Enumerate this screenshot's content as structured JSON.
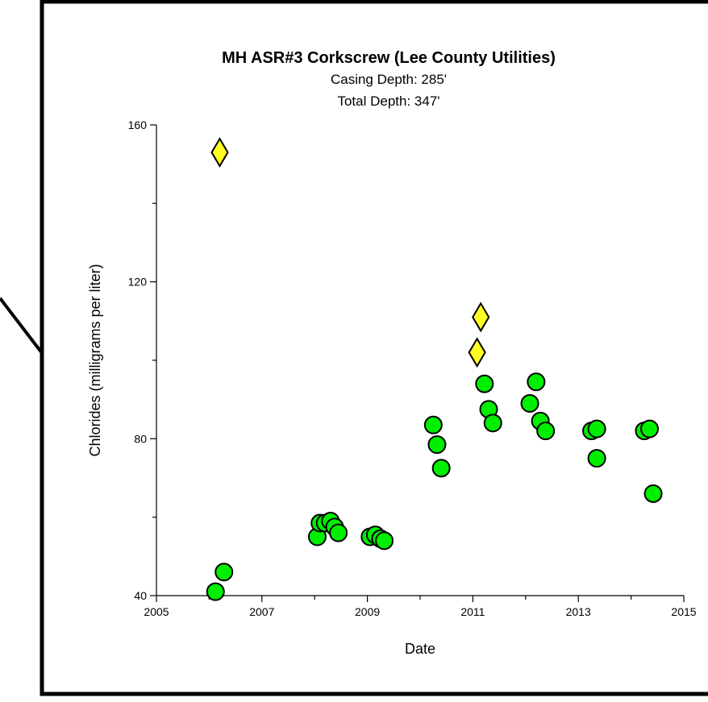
{
  "chart_data": {
    "type": "scatter",
    "title": "MH ASR#3 Corkscrew (Lee County Utilities)",
    "subtitle_lines": [
      "Casing Depth:  285'",
      "Total Depth:  347'"
    ],
    "xlabel": "Date",
    "ylabel": "Chlorides (milligrams per liter)",
    "xlim": [
      2005,
      2015
    ],
    "ylim": [
      40,
      160
    ],
    "x_ticks": [
      2005,
      2007,
      2009,
      2011,
      2013,
      2015
    ],
    "x_tick_labels": [
      "2005",
      "2007",
      "2009",
      "2011",
      "2013",
      "2015"
    ],
    "y_ticks": [
      40,
      80,
      120,
      160
    ],
    "y_tick_labels": [
      "40",
      "80",
      "120",
      "160"
    ],
    "grid": false,
    "series": [
      {
        "marker": "circle",
        "color": "#00ee00",
        "points": [
          {
            "x": 2006.12,
            "y": 41
          },
          {
            "x": 2006.28,
            "y": 46
          },
          {
            "x": 2008.05,
            "y": 55
          },
          {
            "x": 2008.1,
            "y": 58.5
          },
          {
            "x": 2008.2,
            "y": 58.5
          },
          {
            "x": 2008.3,
            "y": 59
          },
          {
            "x": 2008.38,
            "y": 57.5
          },
          {
            "x": 2008.45,
            "y": 56
          },
          {
            "x": 2009.05,
            "y": 55
          },
          {
            "x": 2009.15,
            "y": 55.5
          },
          {
            "x": 2009.25,
            "y": 54.5
          },
          {
            "x": 2009.32,
            "y": 54
          },
          {
            "x": 2010.25,
            "y": 83.5
          },
          {
            "x": 2010.32,
            "y": 78.5
          },
          {
            "x": 2010.4,
            "y": 72.5
          },
          {
            "x": 2011.22,
            "y": 94
          },
          {
            "x": 2011.3,
            "y": 87.5
          },
          {
            "x": 2011.38,
            "y": 84
          },
          {
            "x": 2012.08,
            "y": 89
          },
          {
            "x": 2012.2,
            "y": 94.5
          },
          {
            "x": 2012.28,
            "y": 84.5
          },
          {
            "x": 2012.38,
            "y": 82
          },
          {
            "x": 2013.25,
            "y": 82
          },
          {
            "x": 2013.35,
            "y": 82.5
          },
          {
            "x": 2013.35,
            "y": 75
          },
          {
            "x": 2014.25,
            "y": 82
          },
          {
            "x": 2014.35,
            "y": 82.5
          },
          {
            "x": 2014.42,
            "y": 66
          }
        ]
      },
      {
        "marker": "diamond",
        "color": "#ffff22",
        "points": [
          {
            "x": 2006.2,
            "y": 153
          },
          {
            "x": 2011.08,
            "y": 102
          },
          {
            "x": 2011.15,
            "y": 111
          }
        ]
      }
    ]
  }
}
